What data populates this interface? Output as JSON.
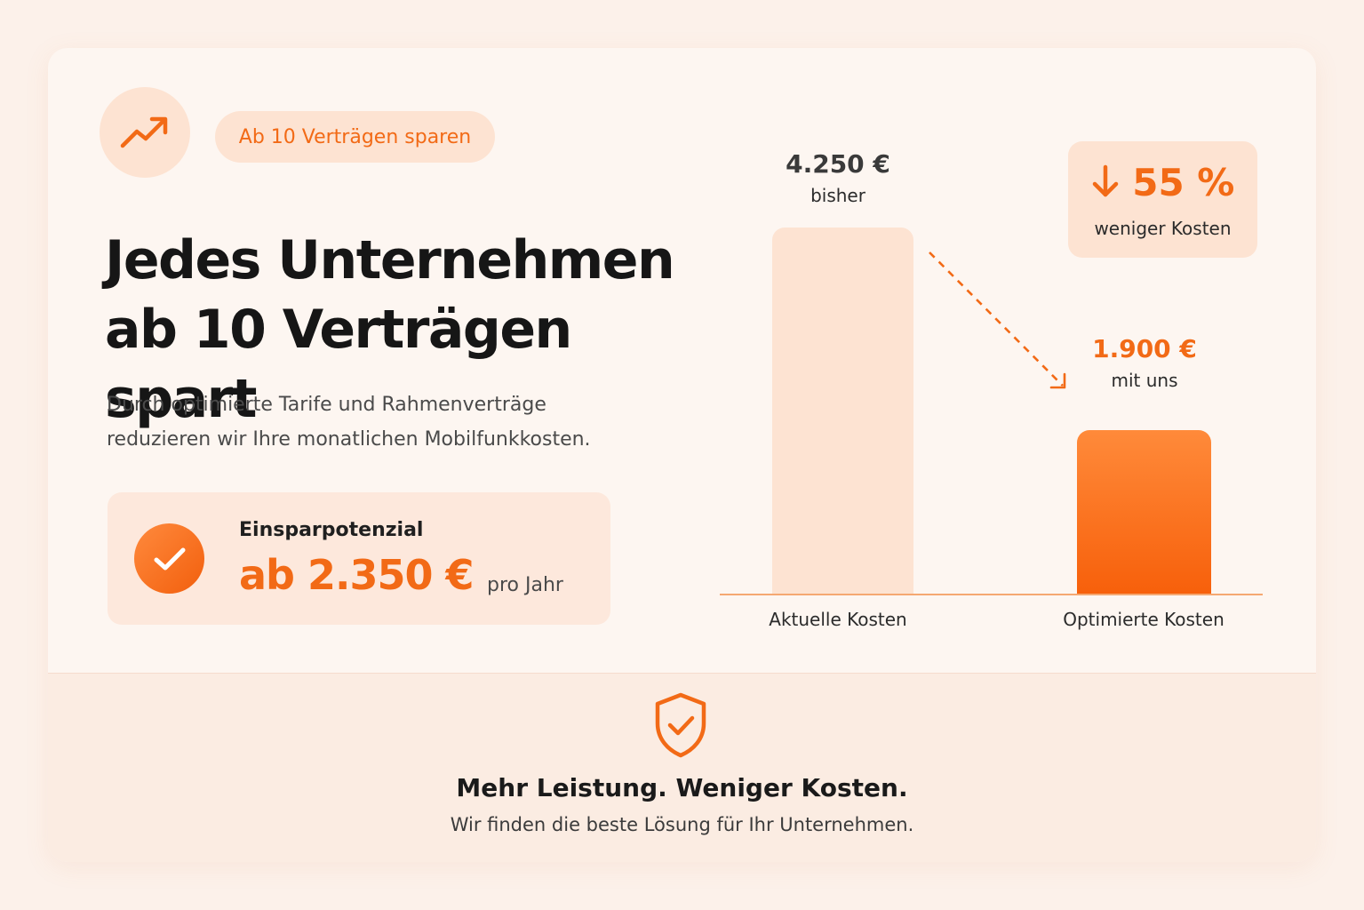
{
  "badge": {
    "label": "Ab 10 Verträgen sparen",
    "icon": "trending-up-icon"
  },
  "headline": {
    "line1": "Jedes Unternehmen",
    "line2": "ab 10 Verträgen spart"
  },
  "description": {
    "line1": "Durch optimierte Tarife und Rahmenverträge",
    "line2": "reduzieren wir Ihre monatlichen Mobilfunkkosten."
  },
  "savings": {
    "label": "Einsparpotenzial",
    "amount": "ab 2.350 €",
    "unit": "pro Jahr",
    "icon": "check-circle-icon"
  },
  "reduction": {
    "value": "55 %",
    "label": "weniger Kosten",
    "icon": "arrow-down-icon"
  },
  "chart_data": {
    "type": "bar",
    "categories": [
      "Aktuelle Kosten",
      "Optimierte Kosten"
    ],
    "values": [
      4250,
      1900
    ],
    "value_labels": [
      "4.250 €",
      "1.900 €"
    ],
    "value_sublabels": [
      "bisher",
      "mit uns"
    ],
    "colors": [
      "#fde3d2",
      "#f7600b"
    ],
    "ylim": [
      0,
      4250
    ]
  },
  "footer": {
    "title": "Mehr Leistung. Weniger Kosten.",
    "subtitle": "Wir finden die beste Lösung für Ihr Unternehmen.",
    "icon": "shield-check-icon"
  },
  "colors": {
    "accent": "#f26a16",
    "accent_light": "#fde3d2",
    "background": "#fdf6f1"
  }
}
